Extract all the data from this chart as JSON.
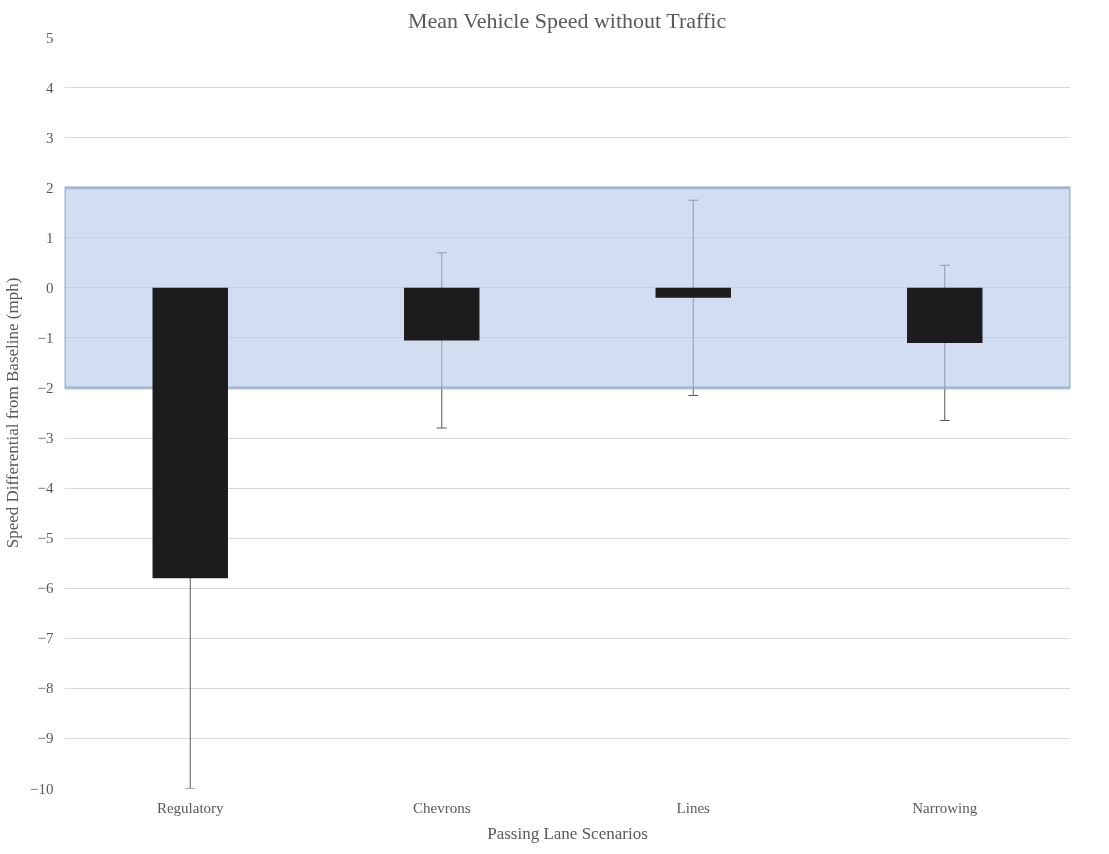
{
  "chart_data": {
    "type": "bar",
    "title": "Mean Vehicle Speed without Traffic",
    "xlabel": "Passing Lane Scenarios",
    "ylabel": "Speed Differential from Baseline (mph)",
    "categories": [
      "Regulatory",
      "Chevrons",
      "Lines",
      "Narrowing"
    ],
    "values": [
      -5.8,
      -1.05,
      -0.2,
      -1.1
    ],
    "errors": [
      4.2,
      1.75,
      1.95,
      1.55
    ],
    "color": "#1c1c1c",
    "ylim": [
      -10,
      5
    ],
    "yticks": [
      -10,
      -9,
      -8,
      -7,
      -6,
      -5,
      -4,
      -3,
      -2,
      -1,
      0,
      1,
      2,
      3,
      4,
      5
    ],
    "bands": [
      {
        "axis": "y",
        "from": -2,
        "to": 2,
        "color": "#b4c7e7"
      }
    ],
    "grid": "y"
  }
}
